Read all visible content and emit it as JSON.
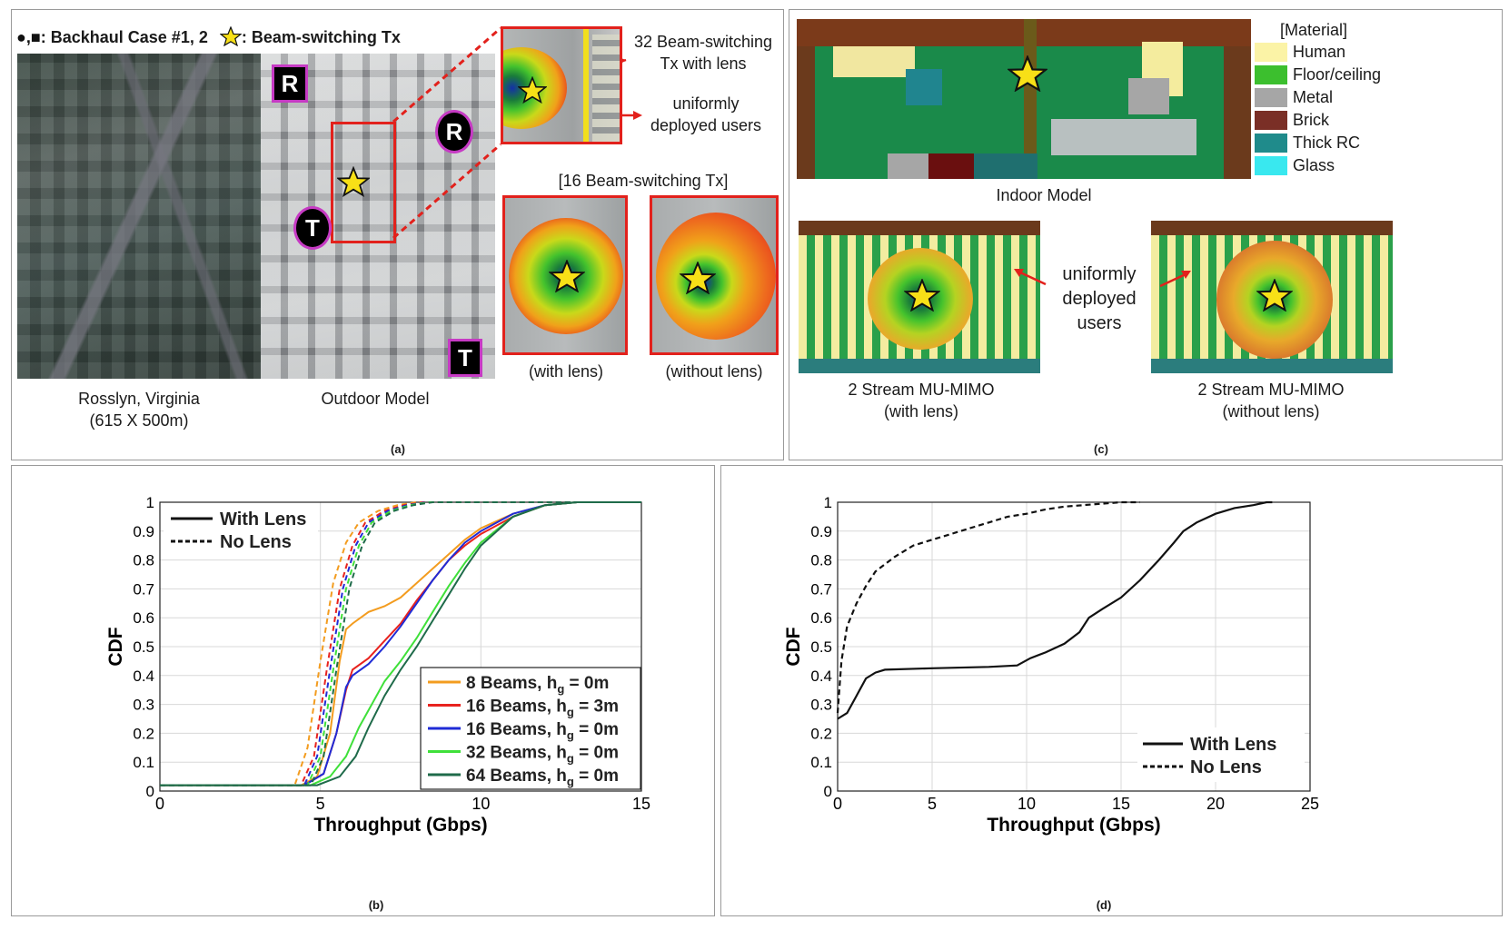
{
  "panel_a": {
    "legend_markers": "●,■",
    "legend_text": ": Backhaul Case #1, 2",
    "legend_star_text": ": Beam-switching Tx",
    "map_caption_1": "Rosslyn, Virginia",
    "map_caption_2": "(615 X 500m)",
    "outdoor_caption": "Outdoor Model",
    "marker_r": "R",
    "marker_t": "T",
    "callout_tx_1": "32 Beam-switching",
    "callout_tx_2": "Tx with lens",
    "callout_users_1": "uniformly",
    "callout_users_2": "deployed users",
    "group_title": "[16 Beam-switching Tx]",
    "with_lens": "(with lens)",
    "without_lens": "(without lens)",
    "label": "(a)"
  },
  "panel_c": {
    "material_title": "[Material]",
    "materials": [
      {
        "name": "Human",
        "color": "#fbf3a6"
      },
      {
        "name": "Floor/ceiling",
        "color": "#3cbf2e"
      },
      {
        "name": "Metal",
        "color": "#a6a6a6"
      },
      {
        "name": "Brick",
        "color": "#7a2f26"
      },
      {
        "name": "Thick RC",
        "color": "#1f8b8b"
      },
      {
        "name": "Glass",
        "color": "#39e8ef"
      }
    ],
    "indoor_caption": "Indoor Model",
    "users_callout_1": "uniformly",
    "users_callout_2": "deployed",
    "users_callout_3": "users",
    "mimo_left_1": "2 Stream MU-MIMO",
    "mimo_left_2": "(with lens)",
    "mimo_right_1": "2 Stream MU-MIMO",
    "mimo_right_2": "(without lens)",
    "label": "(c)"
  },
  "panel_b": {
    "label": "(b)"
  },
  "panel_d": {
    "label": "(d)"
  },
  "chart_data": [
    {
      "id": "b",
      "type": "line",
      "xlabel": "Throughput (Gbps)",
      "ylabel": "CDF",
      "xlim": [
        0,
        15
      ],
      "ylim": [
        0,
        1
      ],
      "xticks": [
        0,
        5,
        10,
        15
      ],
      "yticks": [
        0,
        0.1,
        0.2,
        0.3,
        0.4,
        0.5,
        0.6,
        0.7,
        0.8,
        0.9,
        1
      ],
      "grid": true,
      "style_legend": [
        {
          "label": "With Lens",
          "dash": "solid"
        },
        {
          "label": "No Lens",
          "dash": "dashed"
        }
      ],
      "series": [
        {
          "name": "8  Beams, h",
          "sub": "g",
          "suffix": " = 0m",
          "color": "#f39c1f",
          "with_lens": [
            [
              0,
              0.02
            ],
            [
              4.4,
              0.02
            ],
            [
              4.9,
              0.05
            ],
            [
              5.3,
              0.2
            ],
            [
              5.6,
              0.45
            ],
            [
              5.8,
              0.56
            ],
            [
              6.0,
              0.58
            ],
            [
              6.5,
              0.62
            ],
            [
              7,
              0.64
            ],
            [
              7.5,
              0.67
            ],
            [
              8,
              0.72
            ],
            [
              8.5,
              0.77
            ],
            [
              9,
              0.82
            ],
            [
              9.5,
              0.87
            ],
            [
              10,
              0.91
            ],
            [
              11,
              0.96
            ],
            [
              12,
              0.99
            ],
            [
              13,
              1.0
            ],
            [
              15,
              1.0
            ]
          ],
          "no_lens": [
            [
              0,
              0.02
            ],
            [
              4.2,
              0.02
            ],
            [
              4.6,
              0.15
            ],
            [
              5.0,
              0.45
            ],
            [
              5.4,
              0.72
            ],
            [
              5.8,
              0.86
            ],
            [
              6.2,
              0.93
            ],
            [
              6.8,
              0.97
            ],
            [
              7.4,
              0.99
            ],
            [
              8,
              1.0
            ],
            [
              15,
              1.0
            ]
          ]
        },
        {
          "name": "16 Beams, h",
          "sub": "g",
          "suffix": " = 3m",
          "color": "#e8231f",
          "with_lens": [
            [
              0,
              0.02
            ],
            [
              4.5,
              0.02
            ],
            [
              5.1,
              0.06
            ],
            [
              5.5,
              0.2
            ],
            [
              5.8,
              0.35
            ],
            [
              6.0,
              0.42
            ],
            [
              6.5,
              0.46
            ],
            [
              7,
              0.52
            ],
            [
              7.5,
              0.58
            ],
            [
              8,
              0.66
            ],
            [
              8.5,
              0.73
            ],
            [
              9,
              0.8
            ],
            [
              9.5,
              0.85
            ],
            [
              10,
              0.89
            ],
            [
              11,
              0.95
            ],
            [
              12,
              0.99
            ],
            [
              13,
              1.0
            ],
            [
              15,
              1.0
            ]
          ],
          "no_lens": [
            [
              0,
              0.02
            ],
            [
              4.4,
              0.02
            ],
            [
              4.8,
              0.12
            ],
            [
              5.2,
              0.42
            ],
            [
              5.6,
              0.7
            ],
            [
              6.0,
              0.85
            ],
            [
              6.4,
              0.93
            ],
            [
              7,
              0.97
            ],
            [
              7.6,
              0.99
            ],
            [
              8.2,
              1.0
            ],
            [
              15,
              1.0
            ]
          ]
        },
        {
          "name": "16 Beams, h",
          "sub": "g",
          "suffix": " = 0m",
          "color": "#1f2bd6",
          "with_lens": [
            [
              0,
              0.02
            ],
            [
              4.5,
              0.02
            ],
            [
              5.1,
              0.06
            ],
            [
              5.5,
              0.2
            ],
            [
              5.8,
              0.36
            ],
            [
              6.0,
              0.4
            ],
            [
              6.5,
              0.44
            ],
            [
              7,
              0.5
            ],
            [
              7.5,
              0.57
            ],
            [
              8,
              0.65
            ],
            [
              8.5,
              0.73
            ],
            [
              9,
              0.8
            ],
            [
              9.5,
              0.86
            ],
            [
              10,
              0.9
            ],
            [
              11,
              0.96
            ],
            [
              12,
              0.99
            ],
            [
              13,
              1.0
            ],
            [
              15,
              1.0
            ]
          ],
          "no_lens": [
            [
              0,
              0.02
            ],
            [
              4.5,
              0.02
            ],
            [
              4.9,
              0.12
            ],
            [
              5.3,
              0.42
            ],
            [
              5.7,
              0.7
            ],
            [
              6.1,
              0.85
            ],
            [
              6.5,
              0.93
            ],
            [
              7.1,
              0.97
            ],
            [
              7.7,
              0.99
            ],
            [
              8.3,
              1.0
            ],
            [
              15,
              1.0
            ]
          ]
        },
        {
          "name": "32 Beams, h",
          "sub": "g",
          "suffix": " = 0m",
          "color": "#3fe03a",
          "with_lens": [
            [
              0,
              0.02
            ],
            [
              4.7,
              0.02
            ],
            [
              5.3,
              0.05
            ],
            [
              5.8,
              0.12
            ],
            [
              6.2,
              0.22
            ],
            [
              6.6,
              0.3
            ],
            [
              7,
              0.38
            ],
            [
              7.5,
              0.45
            ],
            [
              8,
              0.53
            ],
            [
              8.5,
              0.62
            ],
            [
              9,
              0.71
            ],
            [
              9.5,
              0.79
            ],
            [
              10,
              0.86
            ],
            [
              11,
              0.95
            ],
            [
              12,
              0.99
            ],
            [
              13,
              1.0
            ],
            [
              15,
              1.0
            ]
          ],
          "no_lens": [
            [
              0,
              0.02
            ],
            [
              4.6,
              0.02
            ],
            [
              5.0,
              0.12
            ],
            [
              5.4,
              0.42
            ],
            [
              5.8,
              0.7
            ],
            [
              6.2,
              0.85
            ],
            [
              6.6,
              0.93
            ],
            [
              7.2,
              0.97
            ],
            [
              7.8,
              0.99
            ],
            [
              8.4,
              1.0
            ],
            [
              15,
              1.0
            ]
          ]
        },
        {
          "name": "64 Beams, h",
          "sub": "g",
          "suffix": " = 0m",
          "color": "#1f6b4a",
          "with_lens": [
            [
              0,
              0.02
            ],
            [
              4.9,
              0.02
            ],
            [
              5.6,
              0.05
            ],
            [
              6.1,
              0.12
            ],
            [
              6.5,
              0.22
            ],
            [
              7,
              0.33
            ],
            [
              7.5,
              0.42
            ],
            [
              8,
              0.5
            ],
            [
              8.5,
              0.59
            ],
            [
              9,
              0.68
            ],
            [
              9.5,
              0.77
            ],
            [
              10,
              0.85
            ],
            [
              11,
              0.95
            ],
            [
              12,
              0.99
            ],
            [
              13,
              1.0
            ],
            [
              15,
              1.0
            ]
          ],
          "no_lens": [
            [
              0,
              0.02
            ],
            [
              4.7,
              0.02
            ],
            [
              5.1,
              0.12
            ],
            [
              5.5,
              0.42
            ],
            [
              5.9,
              0.7
            ],
            [
              6.3,
              0.85
            ],
            [
              6.7,
              0.93
            ],
            [
              7.3,
              0.97
            ],
            [
              7.9,
              0.99
            ],
            [
              8.5,
              1.0
            ],
            [
              15,
              1.0
            ]
          ]
        }
      ]
    },
    {
      "id": "d",
      "type": "line",
      "xlabel": "Throughput (Gbps)",
      "ylabel": "CDF",
      "xlim": [
        0,
        25
      ],
      "ylim": [
        0,
        1
      ],
      "xticks": [
        0,
        5,
        10,
        15,
        20,
        25
      ],
      "yticks": [
        0,
        0.1,
        0.2,
        0.3,
        0.4,
        0.5,
        0.6,
        0.7,
        0.8,
        0.9,
        1
      ],
      "grid": true,
      "legend": "bottom-right",
      "series": [
        {
          "name": "With Lens",
          "dash": "solid",
          "color": "#111111",
          "points": [
            [
              0,
              0.25
            ],
            [
              0.5,
              0.27
            ],
            [
              1,
              0.33
            ],
            [
              1.5,
              0.39
            ],
            [
              2,
              0.41
            ],
            [
              2.5,
              0.42
            ],
            [
              5,
              0.425
            ],
            [
              8,
              0.43
            ],
            [
              9.5,
              0.435
            ],
            [
              10.2,
              0.46
            ],
            [
              11,
              0.48
            ],
            [
              12,
              0.51
            ],
            [
              12.8,
              0.55
            ],
            [
              13.3,
              0.6
            ],
            [
              14,
              0.63
            ],
            [
              15,
              0.67
            ],
            [
              16,
              0.73
            ],
            [
              17,
              0.8
            ],
            [
              17.8,
              0.86
            ],
            [
              18.3,
              0.9
            ],
            [
              19,
              0.93
            ],
            [
              20,
              0.96
            ],
            [
              21,
              0.98
            ],
            [
              22,
              0.99
            ],
            [
              22.7,
              1.0
            ],
            [
              23,
              1.0
            ]
          ]
        },
        {
          "name": "No Lens",
          "dash": "dashed",
          "color": "#111111",
          "points": [
            [
              0,
              0.27
            ],
            [
              0.2,
              0.45
            ],
            [
              0.5,
              0.57
            ],
            [
              1,
              0.65
            ],
            [
              1.5,
              0.71
            ],
            [
              2,
              0.76
            ],
            [
              3,
              0.81
            ],
            [
              4,
              0.85
            ],
            [
              5,
              0.87
            ],
            [
              6,
              0.89
            ],
            [
              7,
              0.91
            ],
            [
              8,
              0.93
            ],
            [
              9,
              0.95
            ],
            [
              10,
              0.96
            ],
            [
              11,
              0.975
            ],
            [
              12,
              0.985
            ],
            [
              13,
              0.99
            ],
            [
              14,
              0.995
            ],
            [
              15,
              1.0
            ],
            [
              16,
              1.0
            ]
          ]
        }
      ]
    }
  ]
}
